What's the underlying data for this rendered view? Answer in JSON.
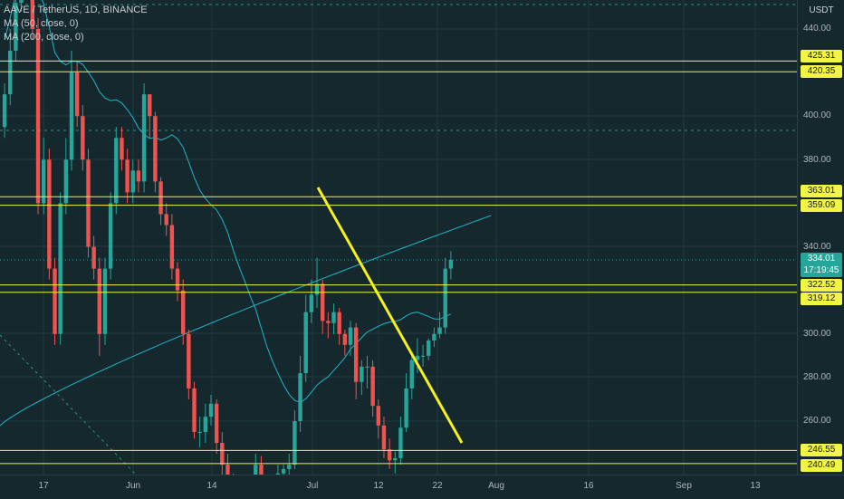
{
  "legend": {
    "title": "AAVE / TetherUS, 1D, BINANCE",
    "ma50": "MA (50, close, 0)",
    "ma200": "MA (200, close, 0)"
  },
  "price_axis": {
    "currency": "USDT",
    "ticks": [
      "440.00",
      "400.00",
      "380.00",
      "340.00",
      "300.00",
      "280.00",
      "260.00"
    ]
  },
  "levels": {
    "items": [
      {
        "label": "425.31",
        "value": 425.31
      },
      {
        "label": "420.35",
        "value": 420.35
      },
      {
        "label": "363.01",
        "value": 363.01
      },
      {
        "label": "359.09",
        "value": 359.09
      },
      {
        "label": "322.52",
        "value": 322.52
      },
      {
        "label": "319.12",
        "value": 319.12
      },
      {
        "label": "246.55",
        "value": 246.55
      },
      {
        "label": "240.49",
        "value": 240.49
      }
    ],
    "color": "#f2f542"
  },
  "current": {
    "price": "334.01",
    "countdown": "17:19:45",
    "color": "#26a69a"
  },
  "time_axis": {
    "labels": [
      "17",
      "Jun",
      "14",
      "Jul",
      "12",
      "22",
      "Aug",
      "16",
      "Sep",
      "13"
    ]
  },
  "colors": {
    "up": "#26a69a",
    "down": "#ef5350",
    "ma": "#1fb6c9",
    "trendline": "#f5f01e"
  },
  "chart_data": {
    "type": "candlestick",
    "dates": [
      "May 13",
      "May 14",
      "May 15",
      "May 16",
      "May 17",
      "May 18",
      "May 19",
      "May 20",
      "May 21",
      "May 22",
      "May 23",
      "May 24",
      "May 25",
      "May 26",
      "May 27",
      "May 28",
      "May 29",
      "May 30",
      "May 31",
      "Jun 1",
      "Jun 2",
      "Jun 3",
      "Jun 4",
      "Jun 5",
      "Jun 6",
      "Jun 7",
      "Jun 8",
      "Jun 9",
      "Jun 10",
      "Jun 11",
      "Jun 12",
      "Jun 13",
      "Jun 14",
      "Jun 15",
      "Jun 16",
      "Jun 17",
      "Jun 18",
      "Jun 19",
      "Jun 20",
      "Jun 21",
      "Jun 22",
      "Jun 23",
      "Jun 24",
      "Jun 25",
      "Jun 26",
      "Jun 27",
      "Jun 28",
      "Jun 29",
      "Jun 30",
      "Jul 1",
      "Jul 2",
      "Jul 3",
      "Jul 4",
      "Jul 5",
      "Jul 6",
      "Jul 7",
      "Jul 8",
      "Jul 9",
      "Jul 10",
      "Jul 11",
      "Jul 12",
      "Jul 13",
      "Jul 14",
      "Jul 15",
      "Jul 16",
      "Jul 17",
      "Jul 18",
      "Jul 19",
      "Jul 20",
      "Jul 21",
      "Jul 22",
      "Jul 23",
      "Jul 24",
      "Jul 25",
      "Jul 26",
      "Jul 27",
      "Jul 28",
      "Jul 29",
      "Jul 30",
      "Jul 31",
      "Aug 1"
    ],
    "open": [
      395,
      410,
      430,
      452,
      470,
      470,
      440,
      360,
      380,
      330,
      300,
      360,
      380,
      420,
      400,
      380,
      340,
      330,
      300,
      330,
      360,
      390,
      380,
      365,
      375,
      370,
      410,
      400,
      370,
      355,
      350,
      330,
      320,
      300,
      275,
      255,
      255,
      262,
      268,
      250,
      240,
      232,
      220,
      225,
      228,
      230,
      240,
      230,
      222,
      228,
      236,
      238,
      240,
      260,
      282,
      310,
      318,
      323,
      306,
      305,
      310,
      300,
      295,
      303,
      278,
      285,
      285,
      267,
      258,
      247,
      242,
      243,
      257,
      275,
      288,
      290,
      290,
      297,
      300,
      303,
      330
    ],
    "close": [
      410,
      430,
      452,
      470,
      470,
      440,
      360,
      380,
      330,
      300,
      360,
      380,
      420,
      400,
      380,
      340,
      330,
      300,
      330,
      360,
      390,
      380,
      365,
      375,
      370,
      410,
      400,
      370,
      355,
      350,
      330,
      320,
      300,
      275,
      255,
      255,
      262,
      268,
      250,
      240,
      232,
      220,
      225,
      228,
      230,
      240,
      230,
      222,
      228,
      236,
      238,
      240,
      260,
      282,
      310,
      318,
      323,
      306,
      305,
      310,
      300,
      295,
      303,
      278,
      285,
      285,
      267,
      258,
      247,
      242,
      243,
      257,
      275,
      288,
      290,
      290,
      297,
      300,
      303,
      330,
      334
    ],
    "high": [
      415,
      440,
      458,
      480,
      478,
      472,
      445,
      390,
      385,
      335,
      365,
      390,
      430,
      425,
      405,
      385,
      345,
      335,
      335,
      365,
      395,
      395,
      385,
      380,
      380,
      415,
      410,
      402,
      372,
      360,
      355,
      333,
      325,
      302,
      278,
      262,
      268,
      272,
      270,
      255,
      245,
      236,
      232,
      232,
      235,
      245,
      244,
      232,
      232,
      240,
      240,
      245,
      265,
      290,
      318,
      325,
      335,
      325,
      310,
      314,
      312,
      302,
      306,
      305,
      288,
      290,
      288,
      270,
      262,
      252,
      246,
      262,
      282,
      292,
      298,
      295,
      298,
      303,
      310,
      335,
      338
    ],
    "low": [
      390,
      405,
      425,
      448,
      460,
      435,
      355,
      355,
      325,
      295,
      295,
      355,
      375,
      395,
      375,
      335,
      325,
      290,
      295,
      325,
      355,
      375,
      360,
      360,
      365,
      365,
      390,
      365,
      350,
      345,
      325,
      315,
      295,
      270,
      252,
      248,
      250,
      258,
      245,
      235,
      228,
      215,
      218,
      220,
      222,
      228,
      225,
      218,
      220,
      225,
      230,
      234,
      238,
      255,
      278,
      305,
      312,
      300,
      298,
      300,
      295,
      290,
      290,
      270,
      272,
      275,
      262,
      252,
      243,
      238,
      236,
      240,
      255,
      270,
      282,
      285,
      288,
      294,
      298,
      300,
      325
    ]
  }
}
